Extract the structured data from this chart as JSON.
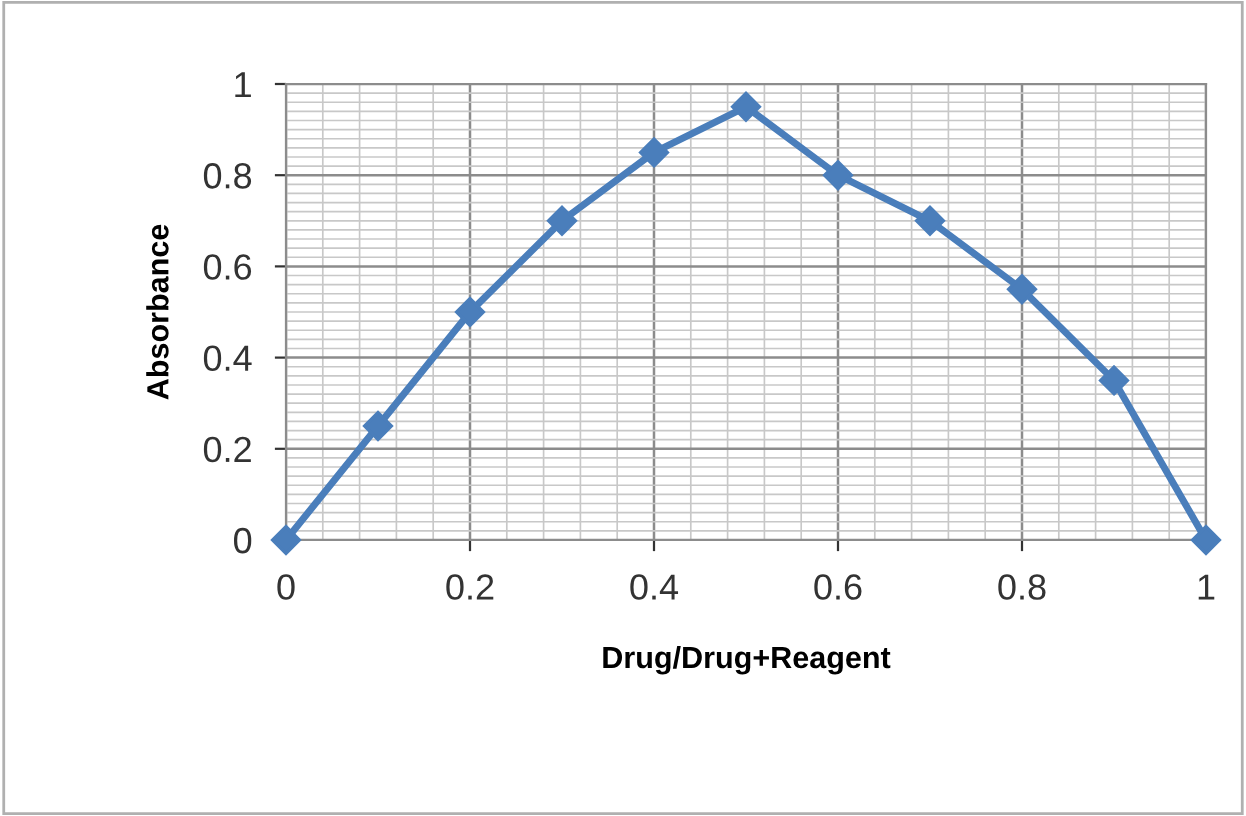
{
  "chart_data": {
    "type": "line",
    "xlabel": "Drug/Drug+Reagent",
    "ylabel": "Absorbance",
    "x": [
      0,
      0.1,
      0.2,
      0.3,
      0.4,
      0.5,
      0.6,
      0.7,
      0.8,
      0.9,
      1
    ],
    "series": [
      {
        "color": "#4a7ebb",
        "values": [
          0,
          0.25,
          0.5,
          0.7,
          0.85,
          0.95,
          0.8,
          0.7,
          0.55,
          0.35,
          0
        ]
      }
    ],
    "xlim": [
      0,
      1
    ],
    "ylim": [
      0,
      1
    ],
    "xticks": [
      0,
      0.2,
      0.4,
      0.6,
      0.8,
      1
    ],
    "yticks": [
      0,
      0.2,
      0.4,
      0.6,
      0.8,
      1
    ],
    "grid": true,
    "marker": "diamond",
    "line_style": "solid",
    "legend": false
  }
}
